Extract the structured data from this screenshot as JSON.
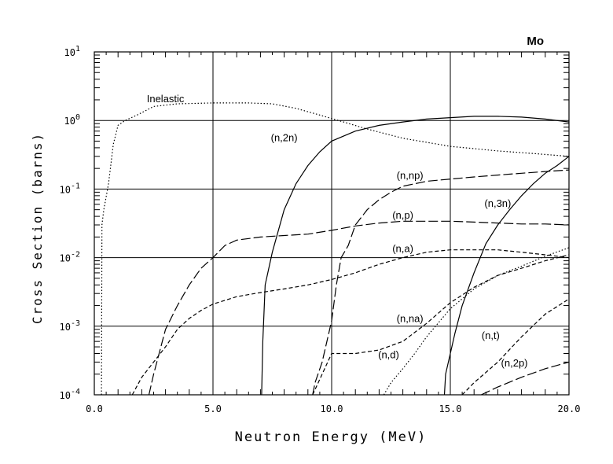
{
  "chart_data": {
    "type": "line",
    "title": "Mo",
    "xlabel": "Neutron Energy (MeV)",
    "ylabel": "Cross Section (barns)",
    "xlim": [
      0,
      20
    ],
    "ylim_log10": [
      -4,
      1
    ],
    "x_ticks": [
      "0.0",
      "5.0",
      "10.0",
      "15.0",
      "20.0"
    ],
    "x_tick_values": [
      0,
      5,
      10,
      15,
      20
    ],
    "y_ticks": [
      {
        "base": "10",
        "exp": "1",
        "value": 1
      },
      {
        "base": "10",
        "exp": "0",
        "value": 0
      },
      {
        "base": "10",
        "exp": "-1",
        "value": -1
      },
      {
        "base": "10",
        "exp": "-2",
        "value": -2
      },
      {
        "base": "10",
        "exp": "-3",
        "value": -3
      },
      {
        "base": "10",
        "exp": "-4",
        "value": -4
      }
    ],
    "grid": true,
    "series": [
      {
        "name": "Inelastic",
        "dash": "dotted",
        "label_at": [
          3.0,
          1.85
        ],
        "points": [
          [
            0.3,
            0.0001
          ],
          [
            0.32,
            0.03
          ],
          [
            0.4,
            0.05
          ],
          [
            0.6,
            0.12
          ],
          [
            0.8,
            0.45
          ],
          [
            1.0,
            0.85
          ],
          [
            1.3,
            1.0
          ],
          [
            1.8,
            1.2
          ],
          [
            2.5,
            1.6
          ],
          [
            3.5,
            1.75
          ],
          [
            5.0,
            1.8
          ],
          [
            6.5,
            1.8
          ],
          [
            7.5,
            1.75
          ],
          [
            8.5,
            1.5
          ],
          [
            9.5,
            1.2
          ],
          [
            10.5,
            0.95
          ],
          [
            11.5,
            0.75
          ],
          [
            13.0,
            0.55
          ],
          [
            15.0,
            0.42
          ],
          [
            17.0,
            0.36
          ],
          [
            18.5,
            0.33
          ],
          [
            20.0,
            0.3
          ]
        ]
      },
      {
        "name": "(n,2n)",
        "dash": "solid",
        "label_at": [
          8.0,
          0.5
        ],
        "points": [
          [
            7.05,
            0.0001
          ],
          [
            7.1,
            0.0006
          ],
          [
            7.2,
            0.004
          ],
          [
            7.5,
            0.012
          ],
          [
            8.0,
            0.05
          ],
          [
            8.5,
            0.12
          ],
          [
            9.0,
            0.22
          ],
          [
            9.5,
            0.35
          ],
          [
            10.0,
            0.5
          ],
          [
            11.0,
            0.7
          ],
          [
            12.0,
            0.85
          ],
          [
            13.0,
            0.95
          ],
          [
            14.0,
            1.05
          ],
          [
            15.0,
            1.1
          ],
          [
            16.0,
            1.15
          ],
          [
            17.0,
            1.15
          ],
          [
            18.0,
            1.12
          ],
          [
            19.0,
            1.05
          ],
          [
            20.0,
            0.95
          ]
        ]
      },
      {
        "name": "(n,np)",
        "dash": "longdash",
        "label_at": [
          13.3,
          0.14
        ],
        "points": [
          [
            9.2,
            0.0001
          ],
          [
            9.3,
            0.00015
          ],
          [
            9.6,
            0.0003
          ],
          [
            10.0,
            0.0012
          ],
          [
            10.2,
            0.004
          ],
          [
            10.4,
            0.01
          ],
          [
            10.7,
            0.015
          ],
          [
            11.0,
            0.03
          ],
          [
            11.5,
            0.05
          ],
          [
            12.0,
            0.07
          ],
          [
            12.5,
            0.09
          ],
          [
            13.0,
            0.11
          ],
          [
            14.0,
            0.13
          ],
          [
            15.0,
            0.14
          ],
          [
            16.0,
            0.15
          ],
          [
            17.0,
            0.16
          ],
          [
            18.0,
            0.17
          ],
          [
            19.0,
            0.18
          ],
          [
            20.0,
            0.19
          ]
        ]
      },
      {
        "name": "(n,p)",
        "dash": "longdash",
        "label_at": [
          13.0,
          0.037
        ],
        "points": [
          [
            2.3,
            0.0001
          ],
          [
            2.5,
            0.0002
          ],
          [
            3.0,
            0.0009
          ],
          [
            3.5,
            0.002
          ],
          [
            4.0,
            0.004
          ],
          [
            4.5,
            0.007
          ],
          [
            5.0,
            0.01
          ],
          [
            5.5,
            0.015
          ],
          [
            6.0,
            0.018
          ],
          [
            7.0,
            0.02
          ],
          [
            8.0,
            0.021
          ],
          [
            9.0,
            0.022
          ],
          [
            10.0,
            0.025
          ],
          [
            11.0,
            0.029
          ],
          [
            12.0,
            0.032
          ],
          [
            13.0,
            0.034
          ],
          [
            14.0,
            0.034
          ],
          [
            15.0,
            0.034
          ],
          [
            16.0,
            0.033
          ],
          [
            17.0,
            0.032
          ],
          [
            18.0,
            0.031
          ],
          [
            19.0,
            0.031
          ],
          [
            20.0,
            0.03
          ]
        ]
      },
      {
        "name": "(n,a)",
        "dash": "dashed",
        "label_at": [
          13.0,
          0.012
        ],
        "points": [
          [
            1.6,
            0.0001
          ],
          [
            2.0,
            0.00018
          ],
          [
            2.5,
            0.0003
          ],
          [
            3.0,
            0.0005
          ],
          [
            3.5,
            0.0009
          ],
          [
            4.0,
            0.0013
          ],
          [
            4.5,
            0.0017
          ],
          [
            5.0,
            0.0021
          ],
          [
            6.0,
            0.0027
          ],
          [
            7.0,
            0.0031
          ],
          [
            8.0,
            0.0035
          ],
          [
            9.0,
            0.004
          ],
          [
            10.0,
            0.0048
          ],
          [
            11.0,
            0.006
          ],
          [
            12.0,
            0.008
          ],
          [
            13.0,
            0.01
          ],
          [
            14.0,
            0.012
          ],
          [
            15.0,
            0.013
          ],
          [
            16.0,
            0.013
          ],
          [
            17.0,
            0.013
          ],
          [
            18.0,
            0.012
          ],
          [
            19.0,
            0.011
          ],
          [
            20.0,
            0.01
          ]
        ]
      },
      {
        "name": "(n,3n)",
        "dash": "solid",
        "label_at": [
          17.0,
          0.055
        ],
        "points": [
          [
            14.75,
            0.0001
          ],
          [
            14.8,
            0.0002
          ],
          [
            15.0,
            0.0004
          ],
          [
            15.2,
            0.0008
          ],
          [
            15.5,
            0.002
          ],
          [
            16.0,
            0.006
          ],
          [
            16.5,
            0.016
          ],
          [
            17.0,
            0.03
          ],
          [
            17.5,
            0.05
          ],
          [
            18.0,
            0.08
          ],
          [
            18.5,
            0.12
          ],
          [
            19.0,
            0.17
          ],
          [
            19.5,
            0.22
          ],
          [
            20.0,
            0.3
          ]
        ]
      },
      {
        "name": "(n,na)",
        "dash": "dashed",
        "label_at": [
          13.3,
          0.00115
        ],
        "points": [
          [
            9.2,
            0.0001
          ],
          [
            9.6,
            0.0002
          ],
          [
            10.0,
            0.0004
          ],
          [
            11.0,
            0.0004
          ],
          [
            12.0,
            0.00045
          ],
          [
            13.0,
            0.0006
          ],
          [
            14.0,
            0.0011
          ],
          [
            15.0,
            0.0022
          ],
          [
            16.0,
            0.0037
          ],
          [
            17.0,
            0.0055
          ],
          [
            18.0,
            0.007
          ],
          [
            19.0,
            0.009
          ],
          [
            20.0,
            0.011
          ]
        ]
      },
      {
        "name": "(n,d)",
        "dash": "dotted",
        "label_at": [
          12.4,
          0.00034
        ],
        "points": [
          [
            12.2,
            0.0001
          ],
          [
            12.5,
            0.00015
          ],
          [
            13.0,
            0.00024
          ],
          [
            13.5,
            0.0004
          ],
          [
            14.0,
            0.0007
          ],
          [
            15.0,
            0.0018
          ],
          [
            16.0,
            0.0035
          ],
          [
            17.0,
            0.0055
          ],
          [
            18.0,
            0.0075
          ],
          [
            19.0,
            0.0105
          ],
          [
            20.0,
            0.014
          ]
        ]
      },
      {
        "name": "(n,t)",
        "dash": "dashed",
        "label_at": [
          16.7,
          0.00065
        ],
        "points": [
          [
            15.5,
            0.0001
          ],
          [
            16.0,
            0.00015
          ],
          [
            17.0,
            0.0003
          ],
          [
            18.0,
            0.0007
          ],
          [
            19.0,
            0.0015
          ],
          [
            20.0,
            0.0025
          ]
        ]
      },
      {
        "name": "(n,2p)",
        "dash": "longdash",
        "label_at": [
          17.7,
          0.00026
        ],
        "points": [
          [
            16.3,
            0.0001
          ],
          [
            17.0,
            0.00013
          ],
          [
            18.0,
            0.00018
          ],
          [
            19.0,
            0.00024
          ],
          [
            20.0,
            0.0003
          ]
        ]
      }
    ]
  }
}
